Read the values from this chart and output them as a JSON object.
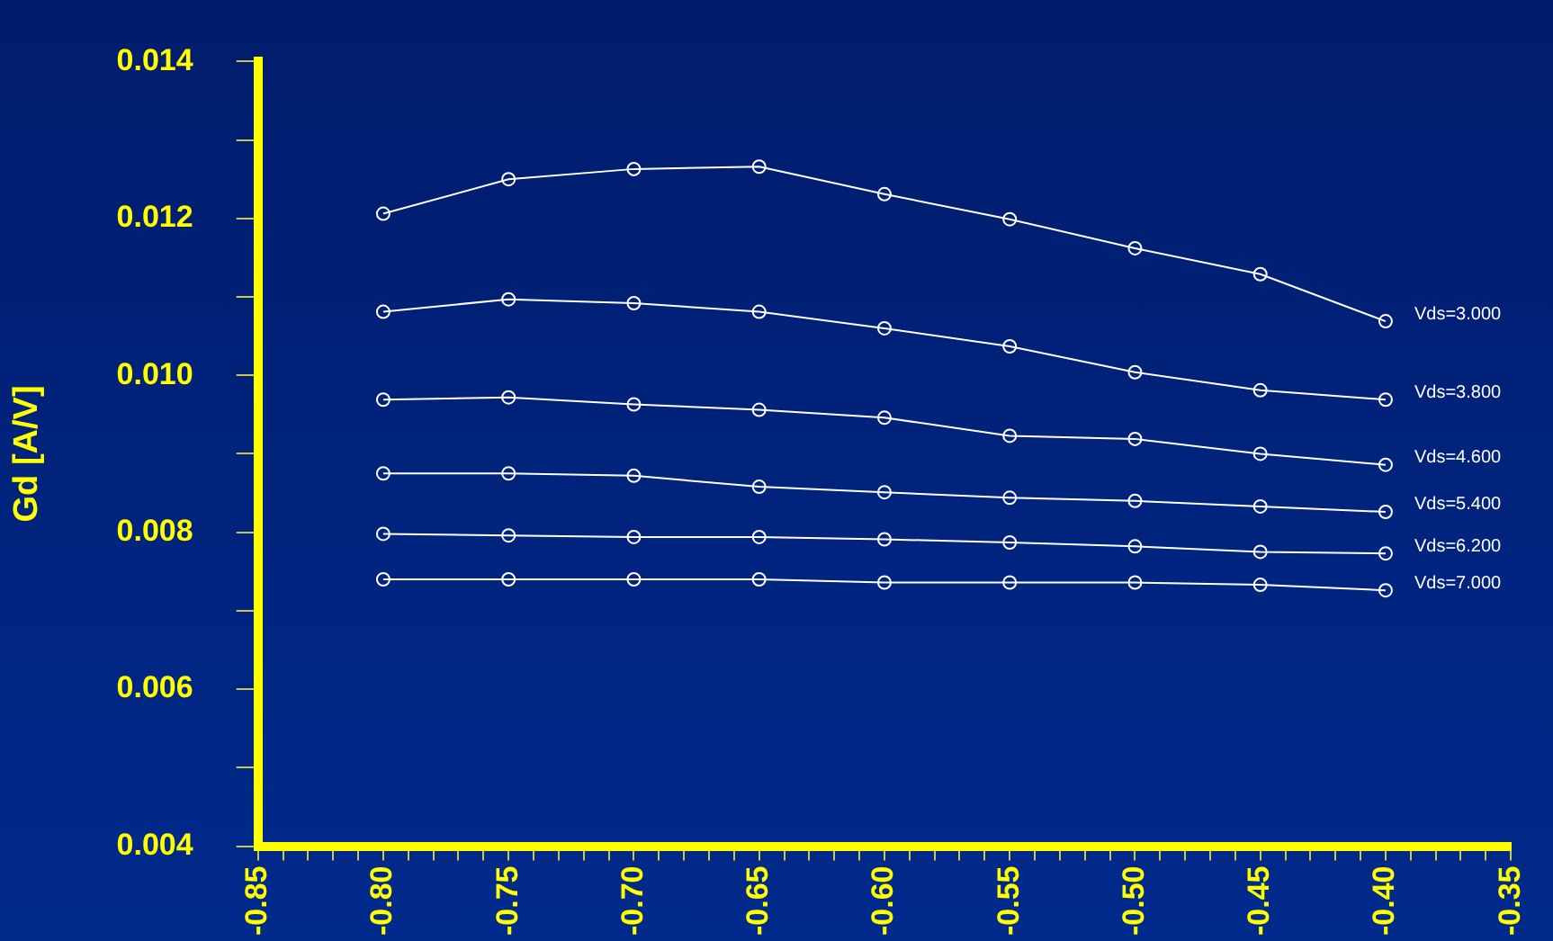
{
  "chart_data": {
    "type": "line",
    "ylabel": "Gd [A/V]",
    "x": [
      -0.8,
      -0.75,
      -0.7,
      -0.65,
      -0.6,
      -0.55,
      -0.5,
      -0.45,
      -0.4
    ],
    "series": [
      {
        "name": "Vds=3.000",
        "color": "#ffffff",
        "values": [
          0.01206,
          0.0125,
          0.01263,
          0.01266,
          0.01231,
          0.01199,
          0.01162,
          0.01129,
          0.01069
        ]
      },
      {
        "name": "Vds=3.800",
        "color": "#ffffff",
        "values": [
          0.01081,
          0.01097,
          0.01092,
          0.01081,
          0.0106,
          0.01037,
          0.01004,
          0.00981,
          0.00969
        ]
      },
      {
        "name": "Vds=4.600",
        "color": "#ffffff",
        "values": [
          0.00969,
          0.00972,
          0.00963,
          0.00956,
          0.00946,
          0.00923,
          0.00919,
          0.009,
          0.00886
        ]
      },
      {
        "name": "Vds=5.400",
        "color": "#ffffff",
        "values": [
          0.00875,
          0.00875,
          0.00872,
          0.00858,
          0.00851,
          0.00844,
          0.0084,
          0.00833,
          0.00826
        ]
      },
      {
        "name": "Vds=6.200",
        "color": "#ffffff",
        "values": [
          0.00798,
          0.00796,
          0.00794,
          0.00794,
          0.00791,
          0.00787,
          0.00782,
          0.00775,
          0.00773
        ]
      },
      {
        "name": "Vds=7.000",
        "color": "#ffffff",
        "values": [
          0.0074,
          0.0074,
          0.0074,
          0.0074,
          0.00736,
          0.00736,
          0.00736,
          0.00733,
          0.00726
        ]
      }
    ],
    "xlim": [
      -0.85,
      -0.35
    ],
    "xticks": [
      "-0.85",
      {
        "value": -0.84,
        "label": null
      },
      {
        "value": -0.83,
        "label": null
      },
      {
        "value": -0.82,
        "label": null
      },
      {
        "value": -0.81,
        "label": null
      },
      {
        "value": -0.8,
        "label": "-0.80"
      },
      {
        "value": -0.79,
        "label": null
      },
      {
        "value": -0.78,
        "label": null
      },
      {
        "value": -0.77,
        "label": null
      },
      {
        "value": -0.76,
        "label": null
      },
      {
        "value": -0.75,
        "label": "-0.75"
      },
      {
        "value": -0.74,
        "label": null
      },
      {
        "value": -0.73,
        "label": null
      },
      {
        "value": -0.72,
        "label": null
      },
      {
        "value": -0.71,
        "label": null
      },
      {
        "value": -0.7,
        "label": "-0.70"
      },
      {
        "value": -0.69,
        "label": null
      },
      {
        "value": -0.68,
        "label": null
      },
      {
        "value": -0.67,
        "label": null
      },
      {
        "value": -0.66,
        "label": null
      },
      {
        "value": -0.65,
        "label": "-0.65"
      },
      {
        "value": -0.64,
        "label": null
      },
      {
        "value": -0.63,
        "label": null
      },
      {
        "value": -0.62,
        "label": null
      },
      {
        "value": -0.61,
        "label": null
      },
      {
        "value": -0.6,
        "label": "-0.60"
      },
      {
        "value": -0.59,
        "label": null
      },
      {
        "value": -0.58,
        "label": null
      },
      {
        "value": -0.57,
        "label": null
      },
      {
        "value": -0.56,
        "label": null
      },
      {
        "value": -0.55,
        "label": "-0.55"
      },
      {
        "value": -0.54,
        "label": null
      },
      {
        "value": -0.53,
        "label": null
      },
      {
        "value": -0.52,
        "label": null
      },
      {
        "value": -0.51,
        "label": null
      },
      {
        "value": -0.5,
        "label": "-0.50"
      },
      {
        "value": -0.49,
        "label": null
      },
      {
        "value": -0.48,
        "label": null
      },
      {
        "value": -0.47,
        "label": null
      },
      {
        "value": -0.46,
        "label": null
      },
      {
        "value": -0.45,
        "label": "-0.45"
      },
      {
        "value": -0.44,
        "label": null
      },
      {
        "value": -0.43,
        "label": null
      },
      {
        "value": -0.42,
        "label": null
      },
      {
        "value": -0.41,
        "label": null
      },
      {
        "value": -0.4,
        "label": "-0.40"
      },
      {
        "value": -0.39,
        "label": null
      },
      {
        "value": -0.38,
        "label": null
      },
      {
        "value": -0.37,
        "label": null
      },
      {
        "value": -0.36,
        "label": null
      },
      {
        "value": -0.35,
        "label": "-0.35"
      }
    ],
    "ylim": [
      0.004,
      0.014
    ],
    "yticks": [
      {
        "value": 0.004,
        "label": "0.004"
      },
      {
        "value": 0.005,
        "label": null
      },
      {
        "value": 0.006,
        "label": "0.006"
      },
      {
        "value": 0.007,
        "label": null
      },
      {
        "value": 0.008,
        "label": "0.008"
      },
      {
        "value": 0.009,
        "label": null
      },
      {
        "value": 0.01,
        "label": "0.010"
      },
      {
        "value": 0.011,
        "label": null
      },
      {
        "value": 0.012,
        "label": "0.012"
      },
      {
        "value": 0.013,
        "label": null
      },
      {
        "value": 0.014,
        "label": "0.014"
      }
    ],
    "grid": false,
    "legend": false,
    "marker": "circle",
    "line_style": "solid"
  }
}
